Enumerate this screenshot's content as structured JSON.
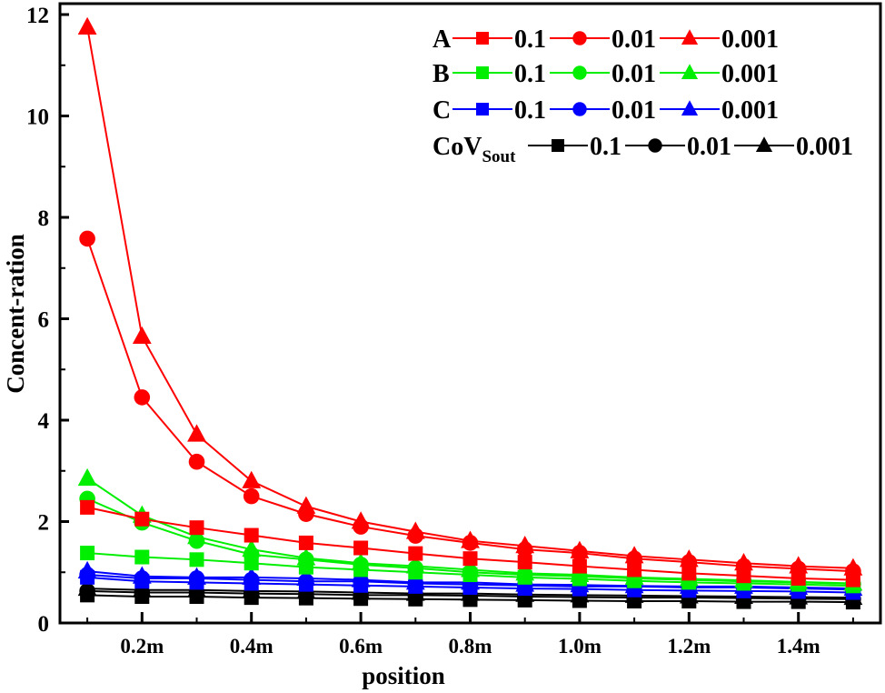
{
  "chart_data": {
    "type": "line",
    "title": "",
    "xlabel": "position",
    "ylabel": "Concent-ration",
    "xlim": [
      0.05,
      1.55
    ],
    "ylim": [
      0,
      12
    ],
    "x_ticks": [
      {
        "value": 0.2,
        "label": "0.2m"
      },
      {
        "value": 0.4,
        "label": "0.4m"
      },
      {
        "value": 0.6,
        "label": "0.6m"
      },
      {
        "value": 0.8,
        "label": "0.8m"
      },
      {
        "value": 1.0,
        "label": "1.0m"
      },
      {
        "value": 1.2,
        "label": "1.2m"
      },
      {
        "value": 1.4,
        "label": "1.4m"
      }
    ],
    "y_ticks": [
      0,
      2,
      4,
      6,
      8,
      10,
      12
    ],
    "grid": false,
    "legend_position": "top-right",
    "x": [
      0.1,
      0.2,
      0.3,
      0.4,
      0.5,
      0.6,
      0.7,
      0.8,
      0.9,
      1.0,
      1.1,
      1.2,
      1.3,
      1.4,
      1.5
    ],
    "groups": [
      {
        "label": "A",
        "label_sub": "",
        "color": "#ff0000",
        "series": [
          {
            "name": "0.1",
            "marker": "square",
            "values": [
              2.28,
              2.05,
              1.88,
              1.73,
              1.58,
              1.48,
              1.37,
              1.27,
              1.2,
              1.12,
              1.05,
              0.98,
              0.93,
              0.88,
              0.85
            ]
          },
          {
            "name": "0.01",
            "marker": "circle",
            "values": [
              7.58,
              4.45,
              3.18,
              2.5,
              2.15,
              1.9,
              1.72,
              1.58,
              1.45,
              1.38,
              1.27,
              1.2,
              1.12,
              1.07,
              1.02
            ]
          },
          {
            "name": "0.001",
            "marker": "triangle",
            "values": [
              11.75,
              5.65,
              3.72,
              2.8,
              2.3,
              2.0,
              1.8,
              1.62,
              1.52,
              1.42,
              1.32,
              1.25,
              1.18,
              1.12,
              1.08
            ]
          }
        ]
      },
      {
        "label": "B",
        "label_sub": "",
        "color": "#00ee00",
        "series": [
          {
            "name": "0.1",
            "marker": "square",
            "values": [
              1.38,
              1.3,
              1.25,
              1.18,
              1.1,
              1.05,
              1.0,
              0.95,
              0.9,
              0.87,
              0.83,
              0.8,
              0.78,
              0.76,
              0.73
            ]
          },
          {
            "name": "0.01",
            "marker": "circle",
            "values": [
              2.45,
              1.98,
              1.62,
              1.35,
              1.25,
              1.15,
              1.08,
              1.0,
              0.95,
              0.92,
              0.88,
              0.85,
              0.82,
              0.8,
              0.77
            ]
          },
          {
            "name": "0.001",
            "marker": "triangle",
            "values": [
              2.85,
              2.12,
              1.7,
              1.45,
              1.28,
              1.18,
              1.12,
              1.05,
              0.98,
              0.95,
              0.9,
              0.87,
              0.84,
              0.81,
              0.78
            ]
          }
        ]
      },
      {
        "label": "C",
        "label_sub": "",
        "color": "#0000ff",
        "series": [
          {
            "name": "0.1",
            "marker": "square",
            "values": [
              0.9,
              0.82,
              0.8,
              0.78,
              0.76,
              0.74,
              0.72,
              0.7,
              0.68,
              0.67,
              0.65,
              0.64,
              0.63,
              0.62,
              0.6
            ]
          },
          {
            "name": "0.01",
            "marker": "circle",
            "values": [
              0.95,
              0.88,
              0.88,
              0.85,
              0.82,
              0.82,
              0.78,
              0.76,
              0.74,
              0.72,
              0.72,
              0.7,
              0.7,
              0.68,
              0.66
            ]
          },
          {
            "name": "0.001",
            "marker": "triangle",
            "values": [
              1.02,
              0.92,
              0.9,
              0.9,
              0.88,
              0.85,
              0.8,
              0.8,
              0.76,
              0.75,
              0.73,
              0.72,
              0.72,
              0.7,
              0.68
            ]
          }
        ]
      },
      {
        "label": "CoV",
        "label_sub": "Sout",
        "color": "#000000",
        "series": [
          {
            "name": "0.1",
            "marker": "square",
            "values": [
              0.55,
              0.52,
              0.52,
              0.5,
              0.49,
              0.48,
              0.47,
              0.46,
              0.45,
              0.44,
              0.43,
              0.43,
              0.42,
              0.42,
              0.41
            ]
          },
          {
            "name": "0.01",
            "marker": "circle",
            "values": [
              0.63,
              0.6,
              0.6,
              0.58,
              0.57,
              0.55,
              0.55,
              0.54,
              0.52,
              0.51,
              0.5,
              0.5,
              0.49,
              0.48,
              0.47
            ]
          },
          {
            "name": "0.001",
            "marker": "triangle",
            "values": [
              0.68,
              0.65,
              0.65,
              0.63,
              0.62,
              0.6,
              0.58,
              0.58,
              0.56,
              0.55,
              0.54,
              0.53,
              0.52,
              0.51,
              0.5
            ]
          }
        ]
      }
    ]
  }
}
